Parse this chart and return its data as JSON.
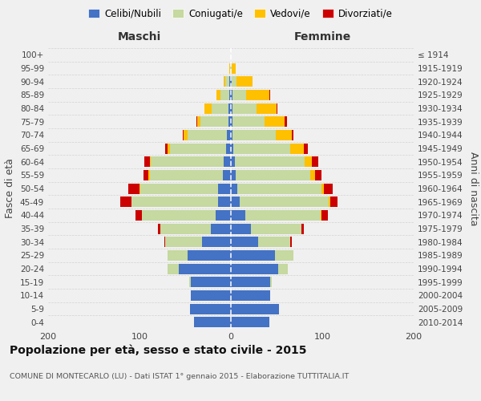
{
  "age_groups": [
    "0-4",
    "5-9",
    "10-14",
    "15-19",
    "20-24",
    "25-29",
    "30-34",
    "35-39",
    "40-44",
    "45-49",
    "50-54",
    "55-59",
    "60-64",
    "65-69",
    "70-74",
    "75-79",
    "80-84",
    "85-89",
    "90-94",
    "95-99",
    "100+"
  ],
  "birth_years": [
    "2010-2014",
    "2005-2009",
    "2000-2004",
    "1995-1999",
    "1990-1994",
    "1985-1989",
    "1980-1984",
    "1975-1979",
    "1970-1974",
    "1965-1969",
    "1960-1964",
    "1955-1959",
    "1950-1954",
    "1945-1949",
    "1940-1944",
    "1935-1939",
    "1930-1934",
    "1925-1929",
    "1920-1924",
    "1915-1919",
    "≤ 1914"
  ],
  "male_celibe": [
    40,
    45,
    44,
    44,
    57,
    47,
    32,
    22,
    17,
    14,
    14,
    9,
    8,
    5,
    4,
    3,
    3,
    2,
    2,
    0,
    0
  ],
  "male_coniugato": [
    0,
    0,
    0,
    2,
    12,
    22,
    40,
    55,
    80,
    95,
    85,
    80,
    80,
    62,
    43,
    30,
    18,
    9,
    4,
    1,
    0
  ],
  "male_vedovo": [
    0,
    0,
    0,
    0,
    0,
    0,
    0,
    0,
    0,
    0,
    1,
    1,
    1,
    2,
    5,
    4,
    8,
    5,
    2,
    1,
    0
  ],
  "male_divorziato": [
    0,
    0,
    0,
    0,
    0,
    0,
    1,
    3,
    7,
    12,
    12,
    6,
    6,
    3,
    1,
    1,
    0,
    0,
    0,
    0,
    0
  ],
  "female_celibe": [
    42,
    53,
    43,
    43,
    52,
    48,
    30,
    22,
    16,
    10,
    7,
    5,
    4,
    3,
    2,
    2,
    2,
    2,
    1,
    0,
    0
  ],
  "female_coniugata": [
    0,
    0,
    0,
    2,
    10,
    20,
    35,
    55,
    82,
    97,
    92,
    82,
    77,
    62,
    47,
    35,
    26,
    15,
    5,
    1,
    0
  ],
  "female_vedova": [
    0,
    0,
    0,
    0,
    0,
    0,
    0,
    0,
    1,
    2,
    3,
    5,
    8,
    15,
    18,
    22,
    22,
    25,
    18,
    4,
    0
  ],
  "female_divorziata": [
    0,
    0,
    0,
    0,
    0,
    0,
    2,
    3,
    7,
    8,
    9,
    7,
    7,
    4,
    1,
    2,
    1,
    1,
    0,
    0,
    0
  ],
  "colors": {
    "celibe": "#4472c4",
    "coniugato": "#c5d9a0",
    "vedovo": "#ffc000",
    "divorziato": "#cc0000"
  },
  "title": "Popolazione per età, sesso e stato civile - 2015",
  "subtitle": "COMUNE DI MONTECARLO (LU) - Dati ISTAT 1° gennaio 2015 - Elaborazione TUTTITALIA.IT",
  "xlabel_left": "Maschi",
  "xlabel_right": "Femmine",
  "ylabel_left": "Fasce di età",
  "ylabel_right": "Anni di nascita",
  "xlim": 200,
  "bg_color": "#f0f0f0",
  "legend_labels": [
    "Celibi/Nubili",
    "Coniugati/e",
    "Vedovi/e",
    "Divorziati/e"
  ]
}
